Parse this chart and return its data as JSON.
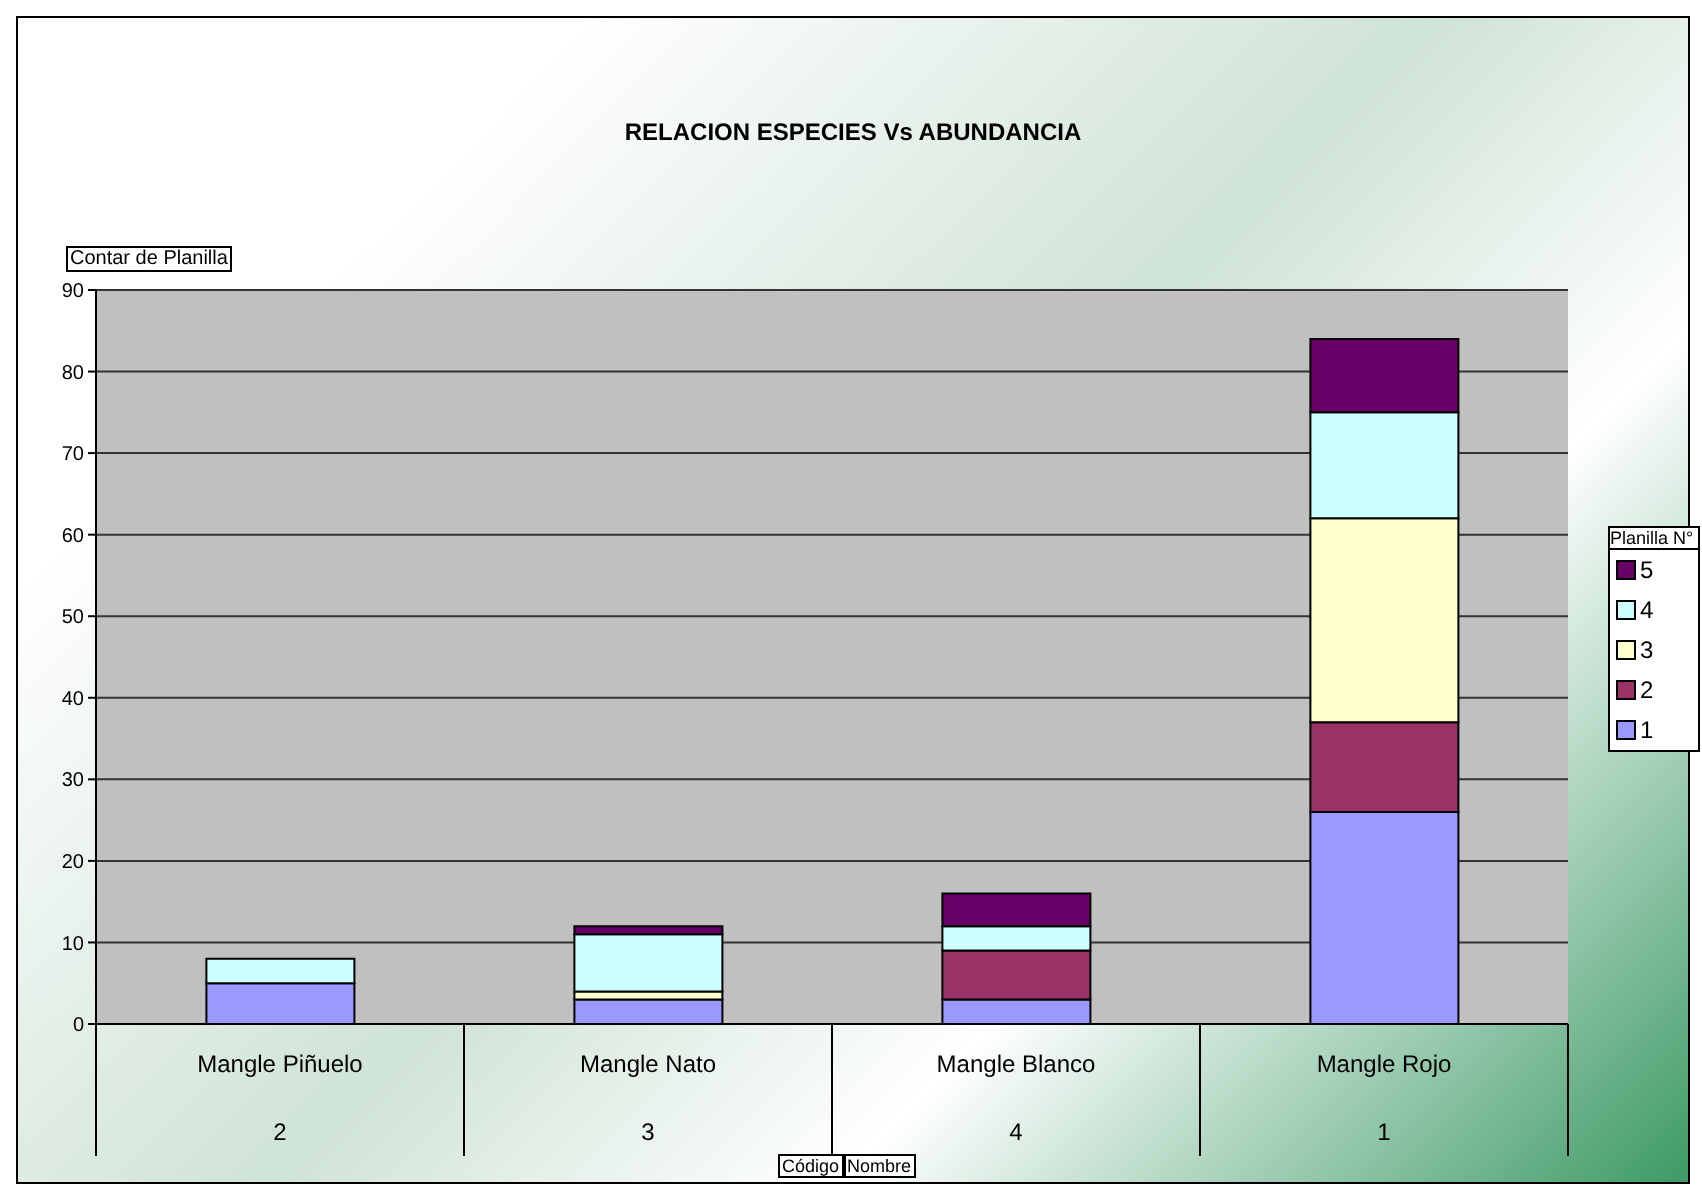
{
  "chart_data": {
    "type": "bar",
    "title": "RELACION ESPECIES Vs ABUNDANCIA",
    "ylabel": "Contar de Planilla",
    "legend_title": "Planilla N°",
    "annotations": [
      "Código",
      "Nombre"
    ],
    "categories": [
      "Mangle Piñuelo\n2",
      "Mangle Nato\n3",
      "Mangle Blanco\n4",
      "Mangle Rojo\n1"
    ],
    "stacked": true,
    "ylim": [
      0,
      90
    ],
    "yticks": [
      0,
      10,
      20,
      30,
      40,
      50,
      60,
      70,
      80,
      90
    ],
    "grid": "y",
    "legend": "right",
    "series": [
      {
        "name": "1",
        "color": "#9999ff",
        "values": [
          5,
          3,
          3,
          26
        ]
      },
      {
        "name": "2",
        "color": "#993366",
        "values": [
          0,
          0,
          6,
          11
        ]
      },
      {
        "name": "3",
        "color": "#ffffcc",
        "values": [
          0,
          1,
          0,
          25
        ]
      },
      {
        "name": "4",
        "color": "#ccffff",
        "values": [
          3,
          7,
          3,
          13
        ]
      },
      {
        "name": "5",
        "color": "#660066",
        "values": [
          0,
          1,
          4,
          9
        ]
      }
    ]
  }
}
